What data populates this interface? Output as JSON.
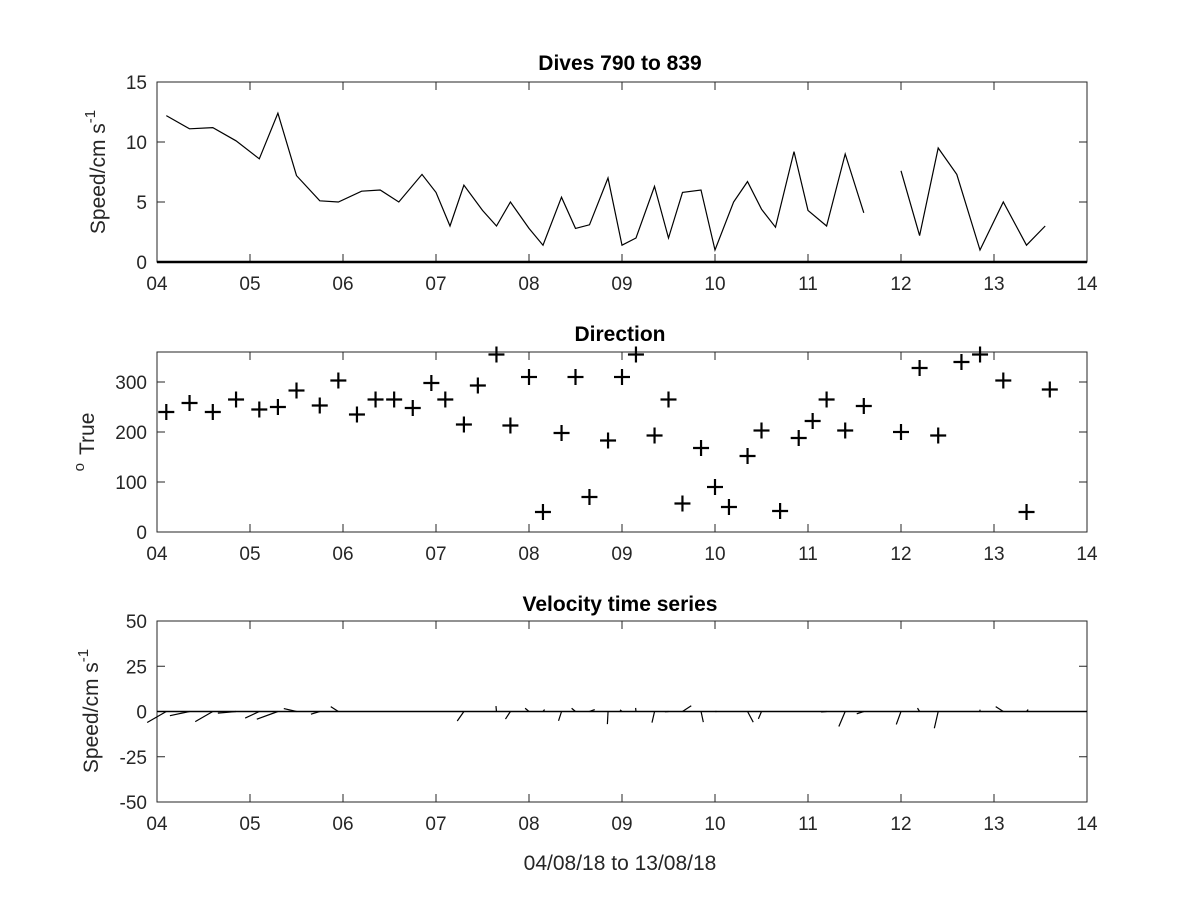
{
  "chart_data": [
    {
      "type": "line",
      "title": "Dives 790 to 839",
      "ylabel_base": "Speed/cm s",
      "ylabel_sup": "-1",
      "xlim": [
        4,
        14
      ],
      "ylim": [
        0,
        15
      ],
      "xticks": [
        4,
        5,
        6,
        7,
        8,
        9,
        10,
        11,
        12,
        13,
        14
      ],
      "xtick_labels": [
        "04",
        "05",
        "06",
        "07",
        "08",
        "09",
        "10",
        "11",
        "12",
        "13",
        "14"
      ],
      "yticks": [
        0,
        5,
        10,
        15
      ],
      "ytick_labels": [
        "0",
        "5",
        "10",
        "15"
      ],
      "segments": [
        {
          "x": [
            4.1,
            4.35,
            4.6,
            4.85,
            5.1,
            5.3,
            5.5,
            5.75,
            5.95,
            6.2,
            6.4,
            6.6,
            6.85,
            7.0,
            7.15,
            7.3,
            7.5,
            7.65,
            7.8,
            8.0,
            8.15,
            8.35,
            8.5,
            8.65,
            8.85,
            9.0,
            9.15,
            9.35,
            9.5,
            9.65,
            9.85,
            10.0,
            10.2,
            10.35,
            10.5,
            10.65,
            10.85,
            11.0,
            11.2,
            11.4,
            11.6
          ],
          "y": [
            12.2,
            11.1,
            11.2,
            10.1,
            8.6,
            12.4,
            7.2,
            5.1,
            5.0,
            5.9,
            6.0,
            5.0,
            7.3,
            5.8,
            3.0,
            6.4,
            4.3,
            3.0,
            5.0,
            2.8,
            1.4,
            5.4,
            2.8,
            3.1,
            7.0,
            1.4,
            2.0,
            6.3,
            2.0,
            5.8,
            6.0,
            1.0,
            5.0,
            6.7,
            4.4,
            2.9,
            9.2,
            4.3,
            3.0,
            9.0,
            4.1
          ]
        },
        {
          "x": [
            12.0,
            12.2,
            12.4,
            12.6,
            12.85,
            13.1,
            13.35,
            13.55
          ],
          "y": [
            7.6,
            2.2,
            9.5,
            7.3,
            1.0,
            5.0,
            1.4,
            3.0
          ]
        }
      ]
    },
    {
      "type": "scatter",
      "marker": "+",
      "title": "Direction",
      "ylabel_sup": "o",
      "ylabel_base": "True",
      "xlim": [
        4,
        14
      ],
      "ylim": [
        0,
        360
      ],
      "xticks": [
        4,
        5,
        6,
        7,
        8,
        9,
        10,
        11,
        12,
        13,
        14
      ],
      "xtick_labels": [
        "04",
        "05",
        "06",
        "07",
        "08",
        "09",
        "10",
        "11",
        "12",
        "13",
        "14"
      ],
      "yticks": [
        0,
        100,
        200,
        300
      ],
      "ytick_labels": [
        "0",
        "100",
        "200",
        "300"
      ],
      "x": [
        4.1,
        4.35,
        4.6,
        4.85,
        5.1,
        5.3,
        5.5,
        5.75,
        5.95,
        6.15,
        6.35,
        6.55,
        6.75,
        6.95,
        7.1,
        7.3,
        7.45,
        7.65,
        7.8,
        8.0,
        8.15,
        8.35,
        8.5,
        8.65,
        8.85,
        9.0,
        9.15,
        9.35,
        9.5,
        9.65,
        9.85,
        10.0,
        10.15,
        10.35,
        10.5,
        10.7,
        10.9,
        11.05,
        11.2,
        11.4,
        11.6,
        12.0,
        12.2,
        12.4,
        12.65,
        12.85,
        13.1,
        13.35,
        13.6
      ],
      "y": [
        240,
        258,
        240,
        265,
        245,
        250,
        283,
        253,
        303,
        235,
        265,
        265,
        248,
        298,
        265,
        215,
        293,
        355,
        213,
        310,
        40,
        198,
        310,
        70,
        183,
        310,
        355,
        193,
        265,
        57,
        168,
        90,
        50,
        152,
        203,
        42,
        188,
        222,
        265,
        203,
        252,
        200,
        328,
        193,
        340,
        355,
        303,
        40,
        285
      ]
    },
    {
      "type": "quiver",
      "title": "Velocity time series",
      "ylabel_base": "Speed/cm s",
      "ylabel_sup": "-1",
      "xlabel": "04/08/18 to 13/08/18",
      "xlim": [
        4,
        14
      ],
      "ylim": [
        -50,
        50
      ],
      "xticks": [
        4,
        5,
        6,
        7,
        8,
        9,
        10,
        11,
        12,
        13,
        14
      ],
      "xtick_labels": [
        "04",
        "05",
        "06",
        "07",
        "08",
        "09",
        "10",
        "11",
        "12",
        "13",
        "14"
      ],
      "yticks": [
        -50,
        -25,
        0,
        25,
        50
      ],
      "ytick_labels": [
        "-50",
        "-25",
        "0",
        "25",
        "50"
      ],
      "note": "sticks drawn from speed (upper panel) and direction (middle panel) sharing the same x values"
    }
  ]
}
